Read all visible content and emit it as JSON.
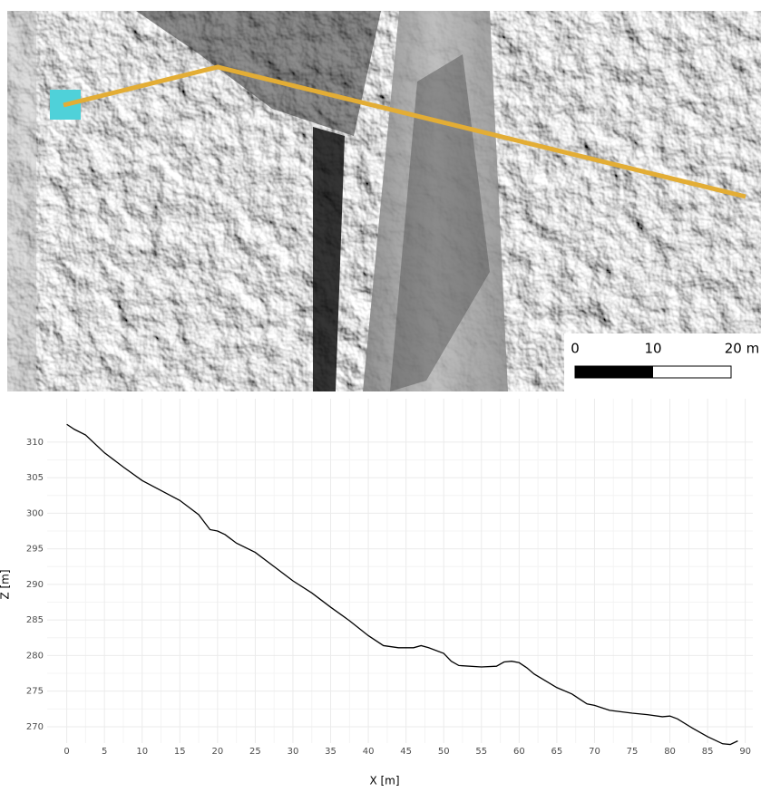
{
  "map": {
    "scale_labels": [
      "0",
      "10",
      "20 m"
    ]
  },
  "chart_data": {
    "type": "line",
    "x_label": "X [m]",
    "y_label": "Z [m]",
    "x": [
      0,
      1,
      2.5,
      5,
      7.5,
      10,
      12.5,
      15,
      17.5,
      19,
      20,
      21,
      22.5,
      25,
      27.5,
      30,
      32.5,
      35,
      37.5,
      40,
      42,
      44,
      46,
      47,
      48,
      50,
      51,
      52,
      55,
      57,
      58,
      59,
      60,
      61,
      62,
      65,
      67,
      69,
      70,
      72,
      75,
      77,
      79,
      80,
      81,
      83,
      85,
      87,
      88,
      89
    ],
    "values": [
      312.5,
      311.8,
      311,
      308.5,
      306.5,
      304.6,
      303.2,
      301.8,
      299.8,
      297.7,
      297.5,
      297,
      295.8,
      294.5,
      292.5,
      290.5,
      288.8,
      286.8,
      284.9,
      282.8,
      281.4,
      281.1,
      281.1,
      281.4,
      281.1,
      280.3,
      279.2,
      278.6,
      278.4,
      278.5,
      279.1,
      279.2,
      279,
      278.3,
      277.4,
      275.5,
      274.6,
      273.2,
      273,
      272.3,
      271.9,
      271.7,
      271.4,
      271.5,
      271.1,
      269.8,
      268.6,
      267.6,
      267.5,
      268
    ],
    "color": "#000000",
    "xlim": [
      -2.6,
      91
    ],
    "ylim": [
      267.7,
      316.1
    ],
    "xticks": [
      0,
      5,
      10,
      15,
      20,
      25,
      30,
      35,
      40,
      45,
      50,
      55,
      60,
      65,
      70,
      75,
      80,
      85,
      90
    ],
    "yticks": [
      270,
      275,
      280,
      285,
      290,
      295,
      300,
      305,
      310
    ],
    "grid": true
  }
}
